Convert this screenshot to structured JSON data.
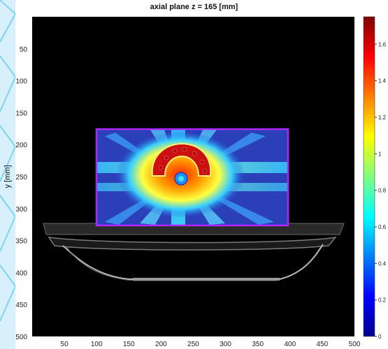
{
  "chart_data": {
    "type": "heatmap",
    "title": "axial plane z = 165 [mm]",
    "xlabel": "",
    "ylabel": "y [mm]",
    "xlim": [
      0,
      500
    ],
    "ylim": [
      500,
      0
    ],
    "x_ticks": [
      "50",
      "100",
      "150",
      "200",
      "250",
      "300",
      "350",
      "400",
      "450",
      "500"
    ],
    "y_ticks": [
      "50",
      "100",
      "150",
      "200",
      "250",
      "300",
      "350",
      "400",
      "450",
      "500"
    ],
    "colorbar": {
      "colormap": "jet",
      "range": [
        0,
        1.75
      ],
      "ticks": [
        "0",
        "0.2",
        "0.4",
        "0.6",
        "0.8",
        "1",
        "1.2",
        "1.4",
        "1.6"
      ]
    },
    "description_regions": {
      "dose_field_box": {
        "x": [
          98,
          400
        ],
        "y": [
          175,
          327
        ]
      },
      "target_center": {
        "x": 250,
        "y": 250
      }
    }
  },
  "colors": {
    "background": "#d7f0fb",
    "axes_bg": "#000000",
    "field_blue": "#2b3fb8",
    "box_outline": "#b026ff",
    "hot": "#cc1010",
    "contour_yellow": "#fff07a"
  }
}
